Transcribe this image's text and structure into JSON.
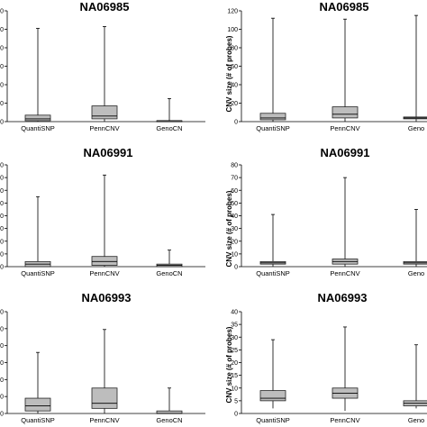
{
  "chart_data": [
    {
      "type": "box",
      "title": "NA06985",
      "ylabel": "",
      "ylim": [
        0,
        120
      ],
      "yticks": [
        "0",
        "0",
        "0",
        "0",
        "0",
        "0",
        "0"
      ],
      "categories": [
        "QuantiSNP",
        "PennCNV",
        "GenoCN"
      ],
      "boxes": [
        {
          "min": 0,
          "q1": 1,
          "median": 3,
          "q3": 7,
          "max": 101
        },
        {
          "min": 0,
          "q1": 3,
          "median": 6,
          "q3": 17,
          "max": 103
        },
        {
          "min": 0,
          "q1": 0,
          "median": 1,
          "q3": 1,
          "max": 25
        }
      ]
    },
    {
      "type": "box",
      "title": "NA06985",
      "ylabel": "CNV size (# of probes)",
      "ylim": [
        0,
        120
      ],
      "yticks": [
        "0",
        "20",
        "40",
        "60",
        "80",
        "100",
        "120"
      ],
      "categories": [
        "QuantiSNP",
        "PennCNV",
        "Geno"
      ],
      "boxes": [
        {
          "min": 0,
          "q1": 2,
          "median": 4,
          "q3": 9,
          "max": 112
        },
        {
          "min": 0,
          "q1": 4,
          "median": 8,
          "q3": 16,
          "max": 111
        },
        {
          "min": 0,
          "q1": 3,
          "median": 4,
          "q3": 5,
          "max": 115
        }
      ]
    },
    {
      "type": "box",
      "title": "NA06991",
      "ylabel": "",
      "ylim": [
        0,
        80
      ],
      "yticks": [
        "0",
        "0",
        "0",
        "0",
        "0",
        "0",
        "0",
        "0",
        "0"
      ],
      "categories": [
        "QuantiSNP",
        "PennCNV",
        "GenoCN"
      ],
      "boxes": [
        {
          "min": 0,
          "q1": 0,
          "median": 2,
          "q3": 4,
          "max": 55
        },
        {
          "min": 0,
          "q1": 1,
          "median": 4,
          "q3": 8,
          "max": 72
        },
        {
          "min": 0,
          "q1": 0,
          "median": 1,
          "q3": 2,
          "max": 13
        }
      ]
    },
    {
      "type": "box",
      "title": "NA06991",
      "ylabel": "CNV size (# of probes)",
      "ylim": [
        0,
        80
      ],
      "yticks": [
        "0",
        "10",
        "20",
        "30",
        "40",
        "50",
        "60",
        "70",
        "80"
      ],
      "categories": [
        "QuantiSNP",
        "PennCNV",
        "Geno"
      ],
      "boxes": [
        {
          "min": 0,
          "q1": 2,
          "median": 3,
          "q3": 4,
          "max": 41
        },
        {
          "min": 0,
          "q1": 2,
          "median": 4,
          "q3": 6,
          "max": 70
        },
        {
          "min": 0,
          "q1": 2,
          "median": 3,
          "q3": 4,
          "max": 45
        }
      ]
    },
    {
      "type": "box",
      "title": "NA06993",
      "ylabel": "",
      "ylim": [
        0,
        40
      ],
      "yticks": [
        "0",
        "0",
        "0",
        "0",
        "0",
        "0",
        "0"
      ],
      "categories": [
        "QuantiSNP",
        "PennCNV",
        "GenoCN"
      ],
      "boxes": [
        {
          "min": 0,
          "q1": 1,
          "median": 3,
          "q3": 6,
          "max": 24
        },
        {
          "min": 0,
          "q1": 2,
          "median": 4,
          "q3": 10,
          "max": 33
        },
        {
          "min": 0,
          "q1": 0,
          "median": 0,
          "q3": 1,
          "max": 10
        }
      ]
    },
    {
      "type": "box",
      "title": "NA06993",
      "ylabel": "CNV size (# of probes)",
      "ylim": [
        0,
        40
      ],
      "yticks": [
        "0",
        "5",
        "10",
        "15",
        "20",
        "25",
        "30",
        "35",
        "40"
      ],
      "categories": [
        "QuantiSNP",
        "PennCNV",
        "Geno"
      ],
      "boxes": [
        {
          "min": 2,
          "q1": 5,
          "median": 6,
          "q3": 9,
          "max": 29
        },
        {
          "min": 1,
          "q1": 6,
          "median": 8,
          "q3": 10,
          "max": 34
        },
        {
          "min": 2,
          "q1": 3,
          "median": 4,
          "q3": 5,
          "max": 27
        }
      ]
    }
  ]
}
